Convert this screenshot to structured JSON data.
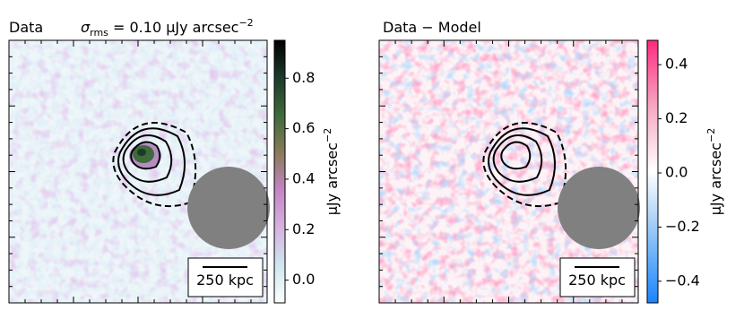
{
  "chart_data": [
    {
      "type": "image",
      "title": "Data",
      "annotation": {
        "symbol": "σ",
        "subscript": "rms",
        "text": " = 0.10 μJy arcsec",
        "superscript": "−2"
      },
      "scale_bar": "250 kpc",
      "colorbar": {
        "label": "μJy arcsec",
        "label_superscript": "−2",
        "clim": [
          -0.09,
          0.95
        ],
        "ticks": [
          {
            "value": 0.0,
            "label": "0.0"
          },
          {
            "value": 0.2,
            "label": "0.2"
          },
          {
            "value": 0.4,
            "label": "0.4"
          },
          {
            "value": 0.6,
            "label": "0.6"
          },
          {
            "value": 0.8,
            "label": "0.8"
          }
        ],
        "colormap": [
          "#ffffff",
          "#cfe6f0",
          "#d6b2e0",
          "#c585c6",
          "#8a7a5a",
          "#3f6a3a",
          "#1c3a2a",
          "#000000"
        ]
      }
    },
    {
      "type": "image",
      "title": "Data − Model",
      "scale_bar": "250 kpc",
      "colorbar": {
        "label": "μJy arcsec",
        "label_superscript": "−2",
        "clim": [
          -0.48,
          0.49
        ],
        "ticks": [
          {
            "value": -0.4,
            "label": "−0.4"
          },
          {
            "value": -0.2,
            "label": "−0.2"
          },
          {
            "value": 0.0,
            "label": "0.0"
          },
          {
            "value": 0.2,
            "label": "0.2"
          },
          {
            "value": 0.4,
            "label": "0.4"
          }
        ],
        "colormap": [
          "#1a85ff",
          "#8cc2f5",
          "#ffffff",
          "#f7a6c2",
          "#ff2a7f"
        ]
      }
    }
  ]
}
